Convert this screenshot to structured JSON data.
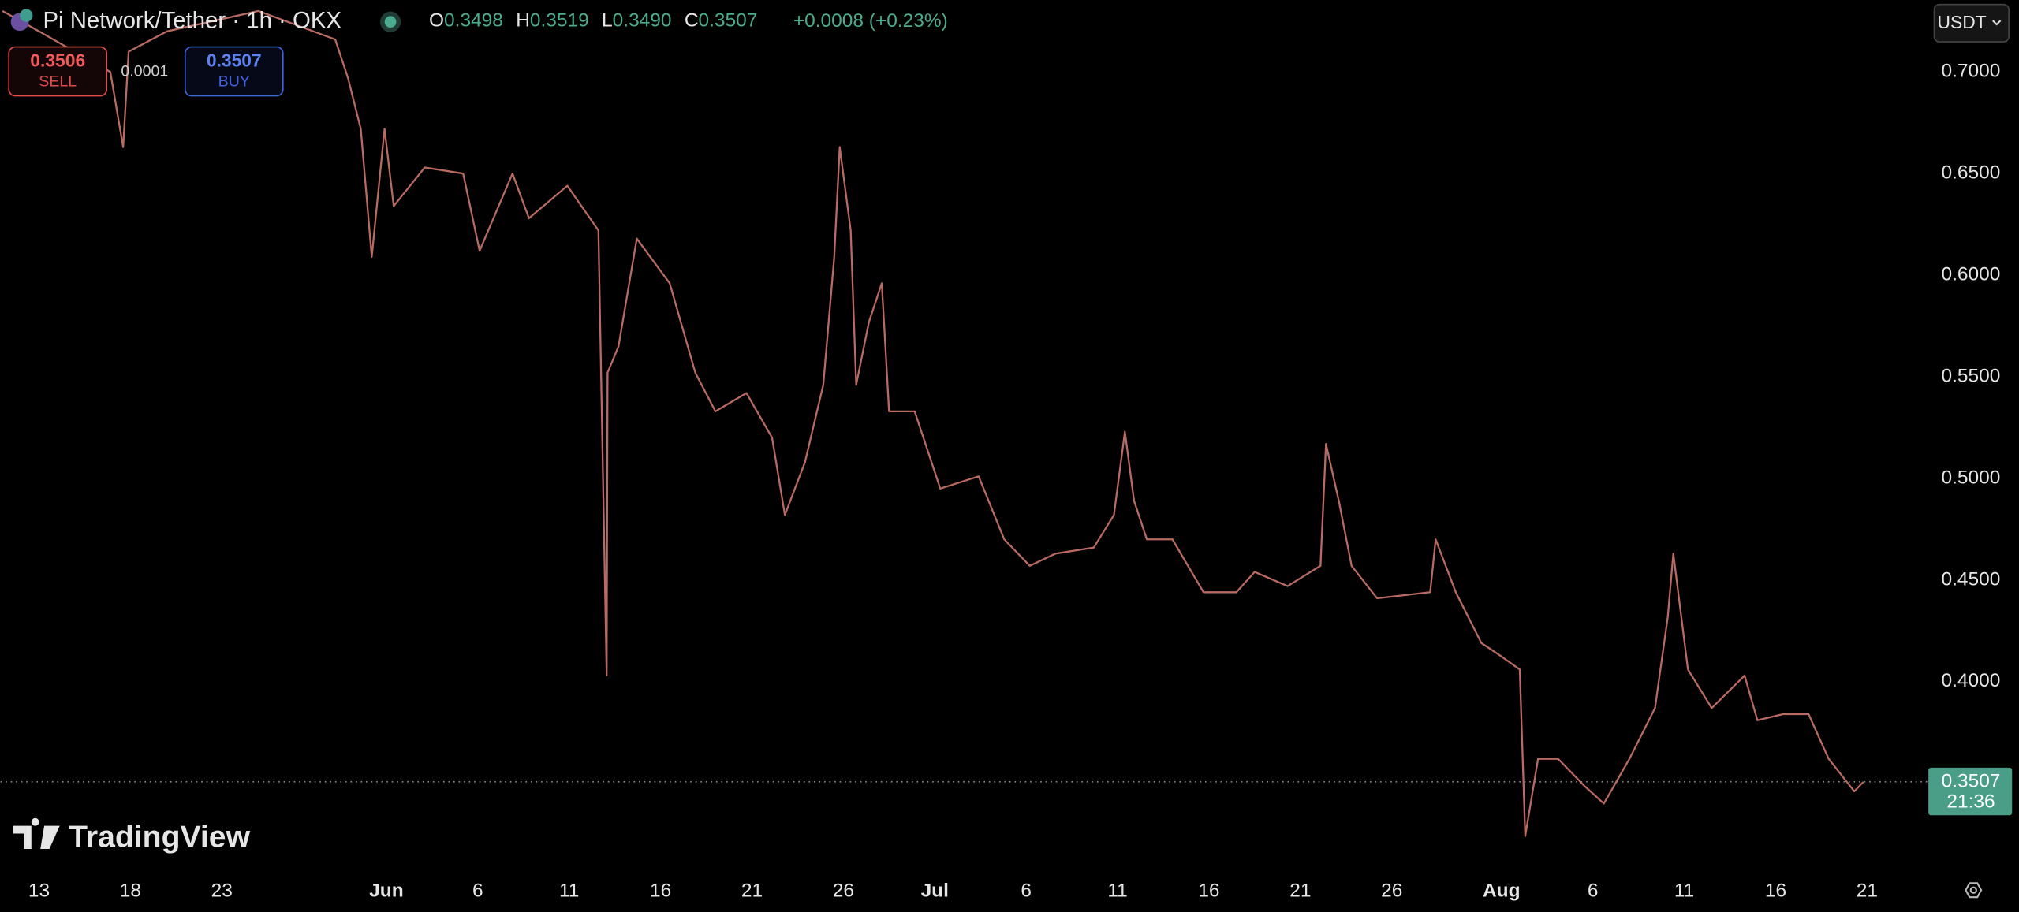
{
  "header": {
    "symbol": "Pi Network/Tether · 1h · OKX",
    "ohlc": [
      {
        "key": "O",
        "value": "0.3498"
      },
      {
        "key": "H",
        "value": "0.3519"
      },
      {
        "key": "L",
        "value": "0.3490"
      },
      {
        "key": "C",
        "value": "0.3507"
      }
    ],
    "change": "+0.0008 (+0.23%)"
  },
  "trade": {
    "sell_price": "0.3506",
    "sell_label": "SELL",
    "spread": "0.0001",
    "buy_price": "0.3507",
    "buy_label": "BUY"
  },
  "currency": "USDT",
  "brand": "TradingView",
  "chart_data": {
    "type": "line",
    "color": "#b86a63",
    "grid": false,
    "x": [
      -2,
      0,
      3.9,
      4.6,
      4.9,
      7,
      12,
      16.2,
      16.9,
      17.6,
      18.2,
      18.9,
      19.4,
      21.1,
      23.2,
      24.1,
      25.9,
      26.8,
      28.9,
      30.6,
      31.05,
      31.1,
      31.7,
      32.7,
      34.5,
      35.9,
      37,
      38.7,
      40.1,
      40.8,
      41.9,
      42.9,
      43.5,
      43.8,
      44.4,
      44.7,
      45.4,
      46.1,
      46.5,
      47.9,
      49.3,
      51.4,
      52.8,
      54.2,
      55.6,
      57.7,
      58.8,
      59.4,
      59.9,
      60.6,
      62,
      63.7,
      65.5,
      66.5,
      68.3,
      70.1,
      70.4,
      71.1,
      71.8,
      73.2,
      76.1,
      76.4,
      77.5,
      78.9,
      79.9,
      81,
      81.3,
      82,
      83.1,
      84.5,
      85.6,
      87,
      88.4,
      89.1,
      89.4,
      90.2,
      91.5,
      93.3,
      94,
      95.4,
      96.8,
      97.9,
      99.3,
      99.8
    ],
    "values": [
      0.73,
      0.72,
      0.7,
      0.663,
      0.71,
      0.72,
      0.73,
      0.716,
      0.697,
      0.672,
      0.609,
      0.672,
      0.634,
      0.653,
      0.65,
      0.612,
      0.65,
      0.628,
      0.644,
      0.622,
      0.403,
      0.552,
      0.565,
      0.618,
      0.596,
      0.552,
      0.533,
      0.542,
      0.52,
      0.482,
      0.508,
      0.546,
      0.609,
      0.663,
      0.622,
      0.546,
      0.577,
      0.596,
      0.533,
      0.533,
      0.495,
      0.501,
      0.47,
      0.457,
      0.463,
      0.466,
      0.482,
      0.523,
      0.489,
      0.47,
      0.47,
      0.444,
      0.444,
      0.454,
      0.447,
      0.457,
      0.517,
      0.489,
      0.457,
      0.441,
      0.444,
      0.47,
      0.444,
      0.419,
      0.413,
      0.406,
      0.324,
      0.362,
      0.362,
      0.349,
      0.34,
      0.362,
      0.387,
      0.432,
      0.463,
      0.406,
      0.387,
      0.403,
      0.381,
      0.384,
      0.384,
      0.362,
      0.346,
      0.3507
    ],
    "xlim": [
      -2.11,
      102.3
    ],
    "ylim": [
      0.305,
      0.7354
    ],
    "xticks": [
      {
        "value": 0,
        "label": "13"
      },
      {
        "value": 5,
        "label": "18"
      },
      {
        "value": 10,
        "label": "23"
      },
      {
        "value": 19,
        "label": "Jun"
      },
      {
        "value": 24,
        "label": "6"
      },
      {
        "value": 29,
        "label": "11"
      },
      {
        "value": 34,
        "label": "16"
      },
      {
        "value": 39,
        "label": "21"
      },
      {
        "value": 44,
        "label": "26"
      },
      {
        "value": 49,
        "label": "Jul"
      },
      {
        "value": 54,
        "label": "6"
      },
      {
        "value": 59,
        "label": "11"
      },
      {
        "value": 64,
        "label": "16"
      },
      {
        "value": 69,
        "label": "21"
      },
      {
        "value": 74,
        "label": "26"
      },
      {
        "value": 80,
        "label": "Aug"
      },
      {
        "value": 85,
        "label": "6"
      },
      {
        "value": 90,
        "label": "11"
      },
      {
        "value": 95,
        "label": "16"
      },
      {
        "value": 100,
        "label": "21"
      }
    ],
    "yticks": [
      {
        "value": 0.4,
        "label": "0.4000"
      },
      {
        "value": 0.45,
        "label": "0.4500"
      },
      {
        "value": 0.5,
        "label": "0.5000"
      },
      {
        "value": 0.55,
        "label": "0.5500"
      },
      {
        "value": 0.6,
        "label": "0.6000"
      },
      {
        "value": 0.65,
        "label": "0.6500"
      },
      {
        "value": 0.7,
        "label": "0.7000"
      }
    ],
    "last_price": 0.3507,
    "countdown": "21:36"
  }
}
